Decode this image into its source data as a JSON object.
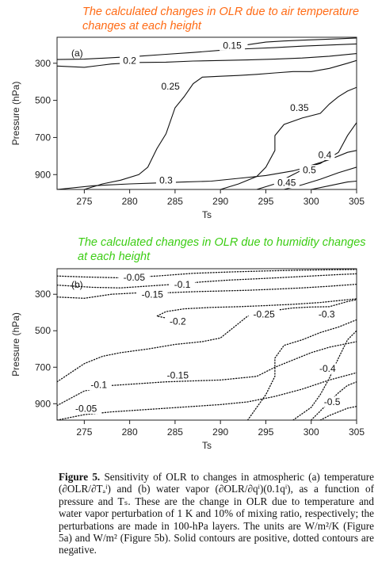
{
  "notes": {
    "top": "The calculated changes in OLR due to air temperature changes at each height",
    "bottom": "The calculated changes in OLR due to humidity changes at each height"
  },
  "chart_data": [
    {
      "type": "contour",
      "panel_label": "(a)",
      "xlabel": "Ts",
      "ylabel": "Pressure (hPa)",
      "xlim": [
        272,
        305
      ],
      "ylim": [
        980,
        160
      ],
      "y_reversed": true,
      "xticks": [
        "275",
        "280",
        "285",
        "290",
        "295",
        "300",
        "305"
      ],
      "yticks": [
        "300",
        "500",
        "700",
        "900"
      ],
      "line_style": "solid",
      "contours": [
        {
          "level": "0.15",
          "points": [
            [
              293,
              200
            ],
            [
              295,
              186
            ],
            [
              297,
              180
            ],
            [
              299,
              176
            ],
            [
              301,
              172
            ],
            [
              303,
              168
            ],
            [
              305,
              164
            ]
          ]
        },
        {
          "level": "0.15",
          "points": [
            [
              272,
              280
            ],
            [
              275,
              278
            ],
            [
              278,
              270
            ],
            [
              281,
              262
            ],
            [
              284,
              252
            ],
            [
              287,
              242
            ],
            [
              290,
              230
            ],
            [
              293,
              222
            ],
            [
              296,
              216
            ],
            [
              299,
              208
            ],
            [
              302,
              202
            ],
            [
              305,
              196
            ]
          ]
        },
        {
          "level": "0.2",
          "points": [
            [
              272,
              315
            ],
            [
              275,
              322
            ],
            [
              278,
              304
            ],
            [
              281,
              296
            ],
            [
              284,
              294
            ],
            [
              287,
              288
            ],
            [
              290,
              285
            ],
            [
              293,
              282
            ],
            [
              296,
              278
            ],
            [
              299,
              272
            ],
            [
              302,
              262
            ],
            [
              305,
              248
            ]
          ]
        },
        {
          "level": "0.25",
          "points": [
            [
              275,
              980
            ],
            [
              277,
              950
            ],
            [
              279,
              930
            ],
            [
              281,
              900
            ],
            [
              282,
              860
            ],
            [
              283,
              760
            ],
            [
              284,
              680
            ],
            [
              285,
              540
            ],
            [
              286,
              480
            ],
            [
              287,
              410
            ],
            [
              288,
              375
            ],
            [
              290,
              370
            ],
            [
              292,
              366
            ],
            [
              294,
              360
            ],
            [
              296,
              352
            ],
            [
              298,
              345
            ],
            [
              300,
              345
            ],
            [
              302,
              328
            ],
            [
              304,
              300
            ],
            [
              305,
              285
            ]
          ]
        },
        {
          "level": "0.3",
          "points": [
            [
              272,
              980
            ],
            [
              276,
              960
            ],
            [
              280,
              950
            ],
            [
              283,
              945
            ],
            [
              286,
              940
            ],
            [
              289,
              935
            ],
            [
              292,
              920
            ],
            [
              295,
              905
            ],
            [
              298,
              880
            ],
            [
              301,
              840
            ],
            [
              303,
              780
            ],
            [
              304,
              690
            ],
            [
              305,
              620
            ]
          ]
        },
        {
          "level": "0.35",
          "points": [
            [
              290,
              980
            ],
            [
              292,
              950
            ],
            [
              294,
              910
            ],
            [
              295,
              860
            ],
            [
              296,
              770
            ],
            [
              296,
              690
            ],
            [
              297,
              630
            ],
            [
              299,
              595
            ],
            [
              301,
              570
            ],
            [
              302,
              520
            ],
            [
              303,
              480
            ],
            [
              304,
              450
            ],
            [
              305,
              430
            ]
          ]
        },
        {
          "level": "0.4",
          "points": [
            [
              294,
              980
            ],
            [
              296,
              950
            ],
            [
              298,
              900
            ],
            [
              300,
              850
            ],
            [
              302,
              820
            ],
            [
              304,
              780
            ],
            [
              305,
              770
            ]
          ]
        },
        {
          "level": "0.45",
          "points": [
            [
              297,
              980
            ],
            [
              299,
              955
            ],
            [
              301,
              925
            ],
            [
              303,
              890
            ],
            [
              305,
              860
            ]
          ]
        },
        {
          "level": "0.5",
          "points": [
            [
              300,
              980
            ],
            [
              302,
              960
            ],
            [
              304,
              940
            ],
            [
              305,
              935
            ]
          ]
        }
      ],
      "contour_labels": [
        {
          "text": "0.15",
          "x": 291.3,
          "y": 215
        },
        {
          "text": "0.2",
          "x": 280.0,
          "y": 296
        },
        {
          "text": "0.25",
          "x": 284.5,
          "y": 435
        },
        {
          "text": "0.3",
          "x": 284.0,
          "y": 942
        },
        {
          "text": "0.35",
          "x": 298.7,
          "y": 550
        },
        {
          "text": "0.4",
          "x": 301.5,
          "y": 805
        },
        {
          "text": "0.5",
          "x": 299.8,
          "y": 887
        },
        {
          "text": "0.45",
          "x": 297.3,
          "y": 955
        }
      ]
    },
    {
      "type": "contour",
      "panel_label": "(b)",
      "xlabel": "Ts",
      "ylabel": "Pressure (hPa)",
      "xlim": [
        272,
        305
      ],
      "ylim": [
        990,
        160
      ],
      "y_reversed": true,
      "xticks": [
        "275",
        "280",
        "285",
        "290",
        "295",
        "300",
        "305"
      ],
      "yticks": [
        "300",
        "500",
        "700",
        "900"
      ],
      "line_style": "dotted",
      "contours": [
        {
          "level": "-0.05",
          "points": [
            [
              272,
              200
            ],
            [
              275,
              205
            ],
            [
              279,
              210
            ],
            [
              283,
              200
            ],
            [
              287,
              185
            ],
            [
              291,
              178
            ],
            [
              295,
              172
            ],
            [
              299,
              168
            ],
            [
              303,
              165
            ],
            [
              305,
              164
            ]
          ]
        },
        {
          "level": "-0.1",
          "points": [
            [
              272,
              250
            ],
            [
              276,
              262
            ],
            [
              279,
              265
            ],
            [
              282,
              255
            ],
            [
              285,
              245
            ],
            [
              288,
              232
            ],
            [
              291,
              222
            ],
            [
              294,
              215
            ],
            [
              297,
              208
            ],
            [
              300,
              200
            ],
            [
              303,
              192
            ],
            [
              305,
              188
            ]
          ]
        },
        {
          "level": "-0.15",
          "points": [
            [
              272,
              315
            ],
            [
              275,
              322
            ],
            [
              278,
              300
            ],
            [
              281,
              292
            ],
            [
              284,
              292
            ],
            [
              287,
              286
            ],
            [
              290,
              282
            ],
            [
              293,
              278
            ],
            [
              296,
              272
            ],
            [
              299,
              265
            ],
            [
              302,
              256
            ],
            [
              305,
              245
            ]
          ]
        },
        {
          "level": "-0.2",
          "points": [
            [
              285,
              440
            ],
            [
              283,
              420
            ],
            [
              284,
              395
            ],
            [
              286,
              380
            ],
            [
              289,
              372
            ],
            [
              292,
              368
            ],
            [
              295,
              362
            ],
            [
              298,
              355
            ],
            [
              301,
              345
            ],
            [
              304,
              330
            ],
            [
              305,
              325
            ]
          ]
        },
        {
          "level": "-0.25",
          "points": [
            [
              293,
              990
            ],
            [
              294,
              920
            ],
            [
              295,
              850
            ],
            [
              296,
              750
            ],
            [
              296,
              650
            ],
            [
              297,
              580
            ],
            [
              299,
              550
            ],
            [
              301,
              510
            ],
            [
              303,
              480
            ],
            [
              305,
              440
            ]
          ]
        },
        {
          "level": "-0.15",
          "points": [
            [
              272,
              780
            ],
            [
              275,
              680
            ],
            [
              277,
              640
            ],
            [
              279,
              620
            ],
            [
              282,
              600
            ],
            [
              285,
              575
            ],
            [
              288,
              560
            ],
            [
              290,
              540
            ],
            [
              292,
              460
            ],
            [
              293,
              420
            ],
            [
              295,
              395
            ],
            [
              298,
              375
            ],
            [
              300,
              370
            ],
            [
              302,
              368
            ],
            [
              304,
              340
            ],
            [
              305,
              330
            ]
          ]
        },
        {
          "level": "-0.1",
          "points": [
            [
              272,
              910
            ],
            [
              275,
              830
            ],
            [
              278,
              800
            ],
            [
              281,
              790
            ],
            [
              284,
              780
            ],
            [
              287,
              775
            ],
            [
              290,
              770
            ],
            [
              292,
              760
            ],
            [
              294,
              750
            ],
            [
              296,
              700
            ],
            [
              298,
              660
            ],
            [
              300,
              620
            ],
            [
              302,
              590
            ],
            [
              305,
              560
            ]
          ]
        },
        {
          "level": "-0.05",
          "points": [
            [
              272,
              990
            ],
            [
              275,
              960
            ],
            [
              278,
              945
            ],
            [
              281,
              935
            ],
            [
              284,
              925
            ],
            [
              287,
              915
            ],
            [
              290,
              905
            ],
            [
              293,
              890
            ],
            [
              296,
              860
            ],
            [
              299,
              820
            ],
            [
              302,
              770
            ],
            [
              305,
              730
            ]
          ]
        },
        {
          "level": "-0.3",
          "points": [
            [
              298,
              990
            ],
            [
              300,
              920
            ],
            [
              301,
              850
            ],
            [
              302,
              760
            ],
            [
              303,
              650
            ],
            [
              304,
              550
            ],
            [
              305,
              500
            ]
          ]
        },
        {
          "level": "-0.4",
          "points": [
            [
              300,
              990
            ],
            [
              301,
              940
            ],
            [
              302,
              890
            ],
            [
              303,
              840
            ],
            [
              304,
              800
            ],
            [
              305,
              780
            ]
          ]
        },
        {
          "level": "-0.5",
          "points": [
            [
              301,
              990
            ],
            [
              302,
              965
            ],
            [
              303,
              945
            ],
            [
              304,
              925
            ],
            [
              305,
              915
            ]
          ]
        }
      ],
      "contour_labels": [
        {
          "text": "-0.05",
          "x": 280.5,
          "y": 218
        },
        {
          "text": "-0.1",
          "x": 285.8,
          "y": 258
        },
        {
          "text": "-0.15",
          "x": 282.5,
          "y": 312
        },
        {
          "text": "-0.2",
          "x": 285.3,
          "y": 460
        },
        {
          "text": "-0.25",
          "x": 294.8,
          "y": 420
        },
        {
          "text": "-0.3",
          "x": 301.7,
          "y": 420
        },
        {
          "text": "-0.4",
          "x": 301.8,
          "y": 718
        },
        {
          "text": "-0.1",
          "x": 276.6,
          "y": 808
        },
        {
          "text": "-0.15",
          "x": 285.3,
          "y": 755
        },
        {
          "text": "-0.5",
          "x": 302.3,
          "y": 900
        },
        {
          "text": "-0.05",
          "x": 275.2,
          "y": 938
        }
      ]
    }
  ],
  "caption": {
    "label": "Figure 5.",
    "body": "Sensitivity of OLR to changes in atmospheric (a) temperature (∂OLR/∂Tₐⁱ) and (b) water vapor (∂OLR/∂qⁱ)(0.1qⁱ), as a function of pressure and Tₛ. These are the change in OLR due to temperature and water vapor perturbation of 1 K and 10% of mixing ratio, respectively; the perturbations are made in 100-hPa layers. The units are W/m²/K (Figure 5a) and W/m² (Figure 5b). Solid contours are positive, dotted contours are negative."
  }
}
